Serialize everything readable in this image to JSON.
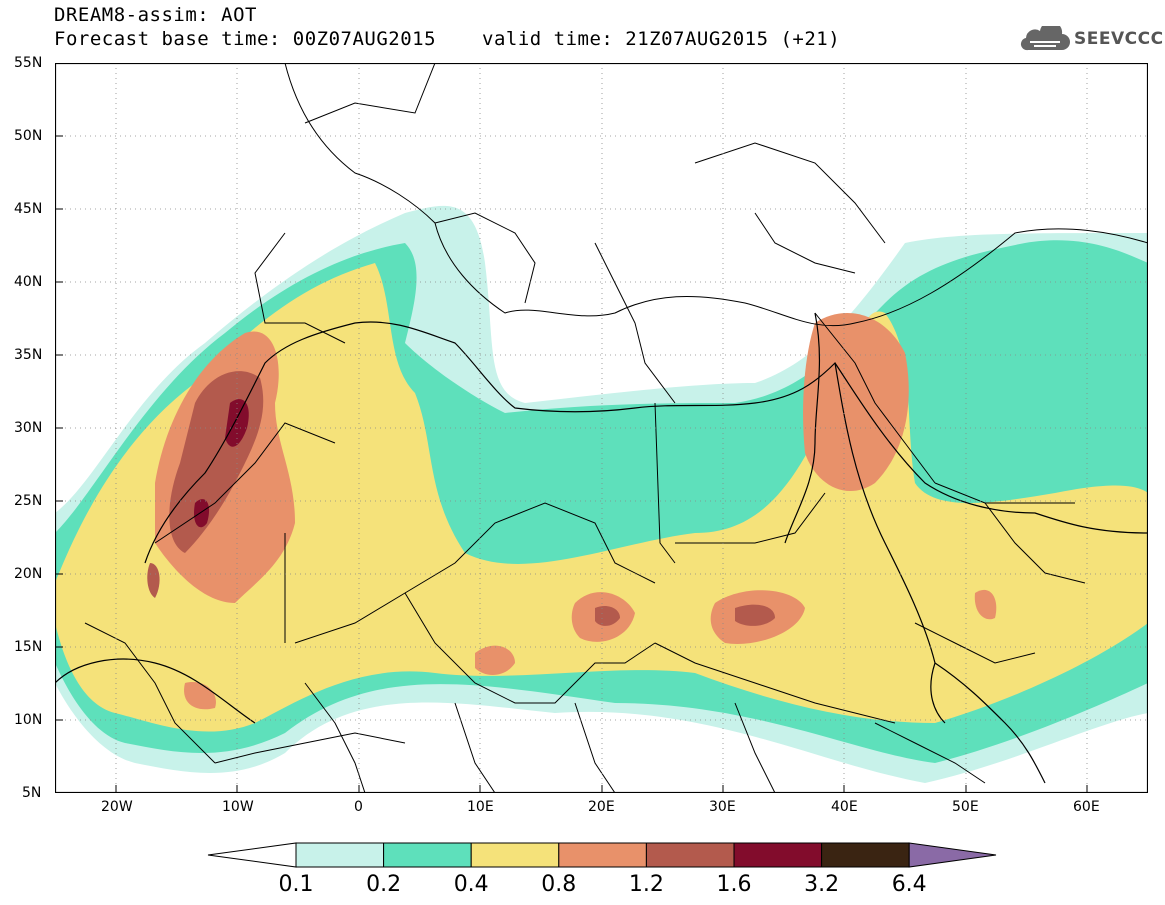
{
  "header": {
    "line1": "DREAM8-assim: AOT",
    "line2": "Forecast base time: 00Z07AUG2015",
    "line3": "valid time: 21Z07AUG2015 (+21)"
  },
  "logo": {
    "icon": "cloud-icon",
    "text": "SEEVCCC"
  },
  "map": {
    "lon_range": [
      -25,
      65
    ],
    "lat_range": [
      5,
      55
    ],
    "lat_ticks": [
      "55N",
      "50N",
      "45N",
      "40N",
      "35N",
      "30N",
      "25N",
      "20N",
      "15N",
      "10N",
      "5N"
    ],
    "lon_ticks": [
      "20W",
      "10W",
      "0",
      "10E",
      "20E",
      "30E",
      "40E",
      "50E",
      "60E"
    ],
    "grid": "dotted"
  },
  "colorbar": {
    "labels": [
      "0.1",
      "0.2",
      "0.4",
      "0.8",
      "1.2",
      "1.6",
      "3.2",
      "6.4"
    ],
    "colors": [
      "#ffffff",
      "#c8f2ea",
      "#5ee0bb",
      "#f5e27a",
      "#e8916a",
      "#b35a4d",
      "#820c2c",
      "#3a2412",
      "#8a6aa6"
    ]
  }
}
